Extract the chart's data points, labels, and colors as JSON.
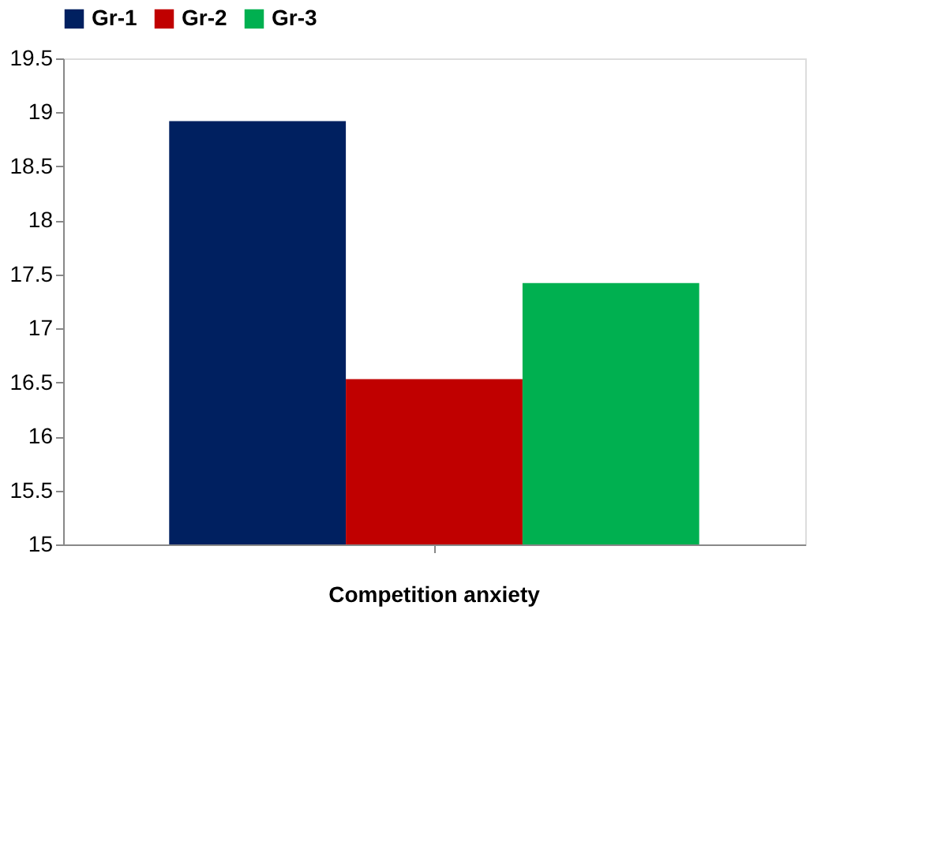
{
  "chart_data": {
    "type": "bar",
    "categories": [
      "Competition anxiety"
    ],
    "series": [
      {
        "name": "Gr-1",
        "color": "#002060",
        "values": [
          18.92
        ]
      },
      {
        "name": "Gr-2",
        "color": "#c00000",
        "values": [
          16.53
        ]
      },
      {
        "name": "Gr-3",
        "color": "#00b050",
        "values": [
          17.42
        ]
      }
    ],
    "ylim": [
      15,
      19.5
    ],
    "yticks": [
      15,
      15.5,
      16,
      16.5,
      17,
      17.5,
      18,
      18.5,
      19,
      19.5
    ],
    "grid": false,
    "legend": "top"
  }
}
